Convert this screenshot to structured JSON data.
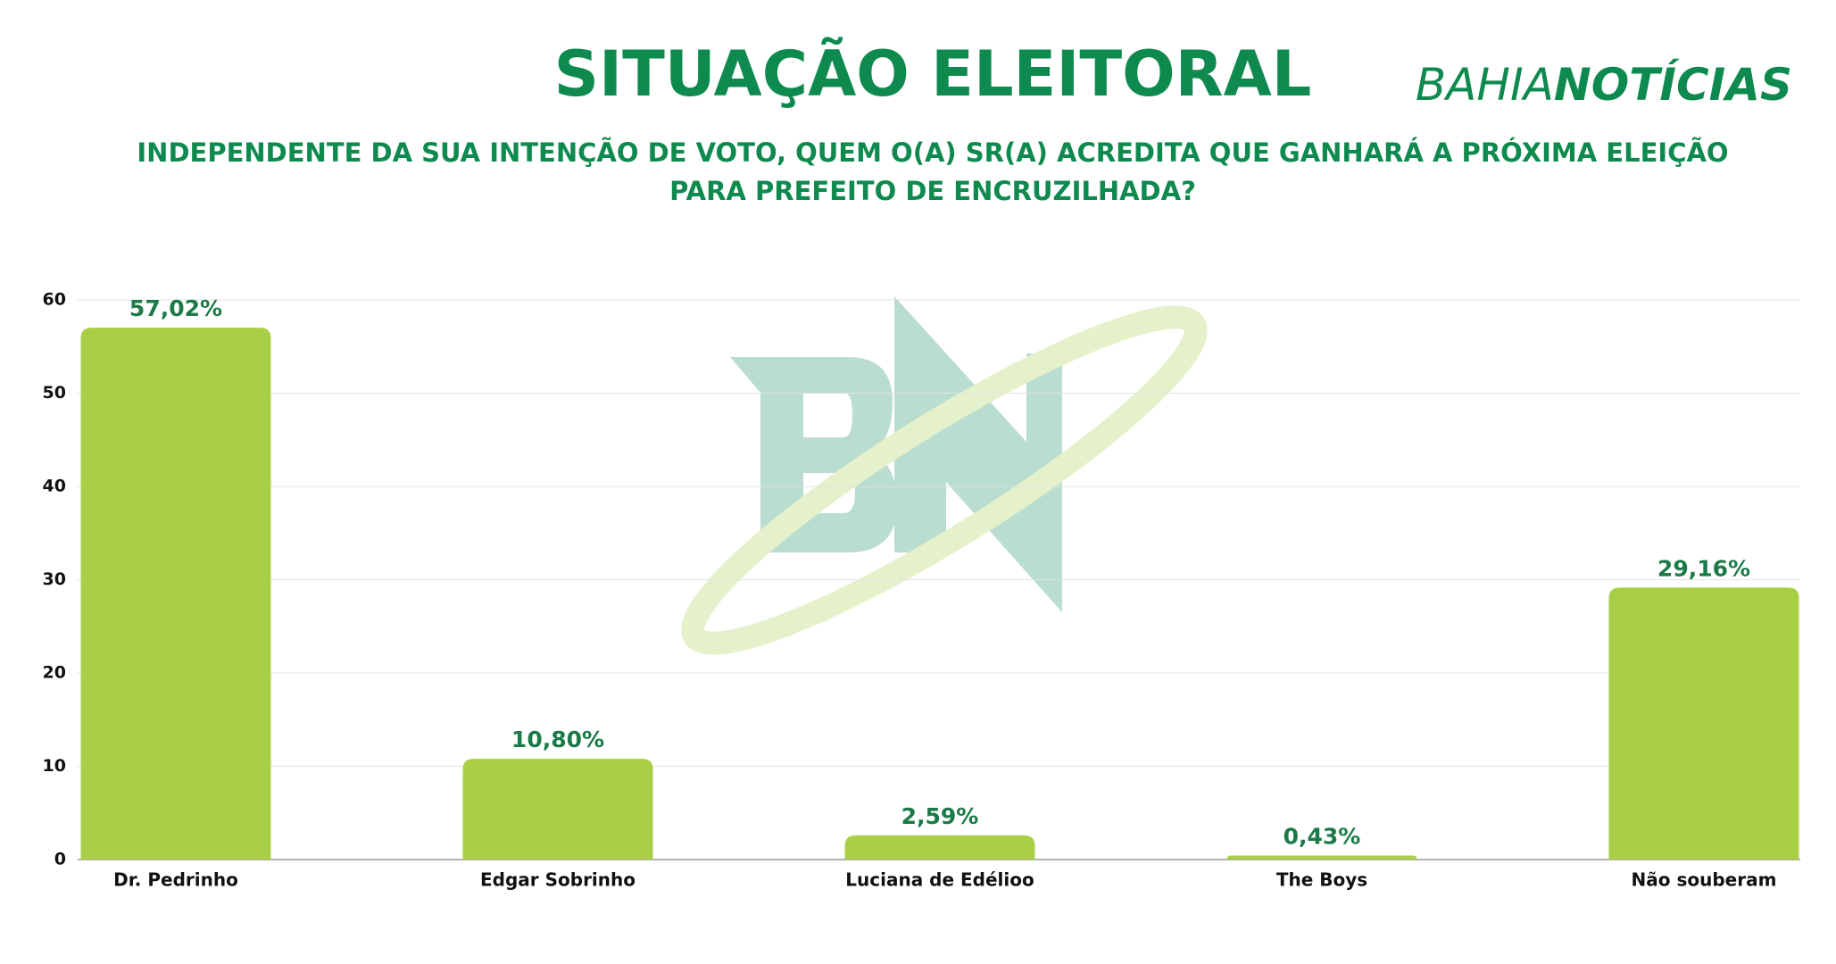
{
  "chart_data": {
    "type": "bar",
    "title": "SITUAÇÃO ELEITORAL",
    "subtitle": [
      "INDEPENDENTE DA SUA INTENÇÃO DE VOTO, QUEM O(A) SR(A) ACREDITA QUE GANHARÁ A PRÓXIMA ELEIÇÃO",
      "PARA PREFEITO DE ENCRUZILHADA?"
    ],
    "logo": [
      "BAHIA",
      "NOTÍCIAS"
    ],
    "categories": [
      "Dr. Pedrinho",
      "Edgar Sobrinho",
      "Luciana de Edélioo",
      "The Boys",
      "Não souberam"
    ],
    "values": [
      57.02,
      10.8,
      2.59,
      0.43,
      29.16
    ],
    "value_labels": [
      "57,02%",
      "10,80%",
      "2,59%",
      "0,43%",
      "29,16%"
    ],
    "color": "#a8cf45",
    "ylim": [
      0,
      60
    ],
    "yticks": [
      0,
      10,
      20,
      30,
      40,
      50,
      60
    ],
    "grid": true
  }
}
